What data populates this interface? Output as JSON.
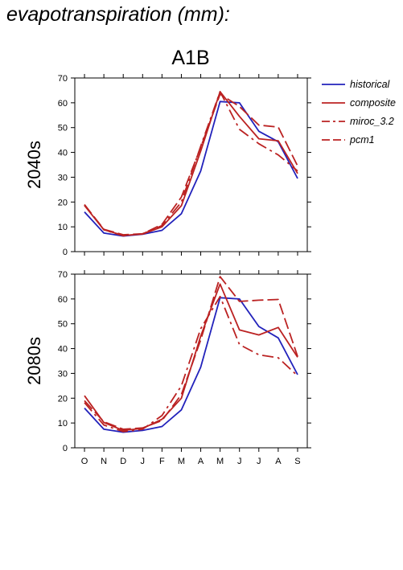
{
  "figure": {
    "title": "evapotranspiration (mm):",
    "scenario": "A1B"
  },
  "colors": {
    "historical": "#2222bb",
    "model": "#bb2222"
  },
  "chart_data": [
    {
      "type": "line",
      "row_label": "2040s",
      "categories": [
        "O",
        "N",
        "D",
        "J",
        "F",
        "M",
        "A",
        "M",
        "J",
        "J",
        "A",
        "S"
      ],
      "ylim": [
        0,
        70
      ],
      "yticks": [
        0,
        10,
        20,
        30,
        40,
        50,
        60,
        70
      ],
      "legend_position": "right",
      "series": [
        {
          "name": "historical",
          "style": "solid",
          "color": "#2222bb",
          "values": [
            16,
            7.5,
            6.3,
            7,
            8.6,
            15.3,
            32.5,
            60.5,
            60,
            48.5,
            44.3,
            29.5
          ]
        },
        {
          "name": "composite",
          "style": "solid",
          "color": "#bb2222",
          "values": [
            18.6,
            8.8,
            6.5,
            7.1,
            10,
            18.5,
            40.5,
            64.5,
            54.5,
            45.5,
            44.7,
            31.5
          ]
        },
        {
          "name": "miroc_3.2",
          "style": "dashdot",
          "color": "#bb2222",
          "values": [
            19,
            8.8,
            6.4,
            7.2,
            10.5,
            20,
            42.5,
            64.5,
            49.3,
            43.5,
            39,
            32.5
          ]
        },
        {
          "name": "pcm1",
          "style": "dashed",
          "color": "#bb2222",
          "values": [
            18.9,
            9,
            6.8,
            7.2,
            11,
            22,
            42,
            63.5,
            58.5,
            51,
            50.2,
            34.5
          ]
        }
      ]
    },
    {
      "type": "line",
      "row_label": "2080s",
      "categories": [
        "O",
        "N",
        "D",
        "J",
        "F",
        "M",
        "A",
        "M",
        "J",
        "J",
        "A",
        "S"
      ],
      "ylim": [
        0,
        70
      ],
      "yticks": [
        0,
        10,
        20,
        30,
        40,
        50,
        60,
        70
      ],
      "series": [
        {
          "name": "historical",
          "style": "solid",
          "color": "#2222bb",
          "values": [
            16,
            7.5,
            6.3,
            7,
            8.6,
            15.3,
            32.5,
            60.5,
            60,
            48.9,
            44.3,
            29.5
          ]
        },
        {
          "name": "composite",
          "style": "solid",
          "color": "#bb2222",
          "values": [
            21,
            10.2,
            7,
            7.8,
            11.5,
            20,
            45,
            66,
            47.5,
            45.5,
            48.5,
            36.5
          ]
        },
        {
          "name": "miroc_3.2",
          "style": "dashdot",
          "color": "#bb2222",
          "values": [
            18.2,
            9.2,
            6.5,
            7.5,
            13,
            25,
            48,
            61,
            41.6,
            37.5,
            36.3,
            29
          ]
        },
        {
          "name": "pcm1",
          "style": "dashed",
          "color": "#bb2222",
          "values": [
            19,
            10.5,
            7.5,
            8,
            11,
            21.5,
            43.5,
            69,
            59,
            59.5,
            59.8,
            36.8
          ]
        }
      ]
    }
  ]
}
